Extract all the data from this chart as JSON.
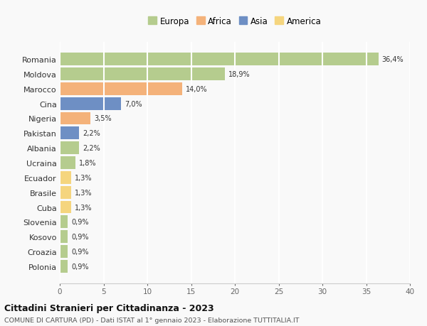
{
  "countries": [
    "Romania",
    "Moldova",
    "Marocco",
    "Cina",
    "Nigeria",
    "Pakistan",
    "Albania",
    "Ucraina",
    "Ecuador",
    "Brasile",
    "Cuba",
    "Slovenia",
    "Kosovo",
    "Croazia",
    "Polonia"
  ],
  "values": [
    36.4,
    18.9,
    14.0,
    7.0,
    3.5,
    2.2,
    2.2,
    1.8,
    1.3,
    1.3,
    1.3,
    0.9,
    0.9,
    0.9,
    0.9
  ],
  "labels": [
    "36,4%",
    "18,9%",
    "14,0%",
    "7,0%",
    "3,5%",
    "2,2%",
    "2,2%",
    "1,8%",
    "1,3%",
    "1,3%",
    "1,3%",
    "0,9%",
    "0,9%",
    "0,9%",
    "0,9%"
  ],
  "continents": [
    "Europa",
    "Europa",
    "Africa",
    "Asia",
    "Africa",
    "Asia",
    "Europa",
    "Europa",
    "America",
    "America",
    "America",
    "Europa",
    "Europa",
    "Europa",
    "Europa"
  ],
  "colors": {
    "Europa": "#b5cc8e",
    "Africa": "#f4b27a",
    "Asia": "#6e8fc4",
    "America": "#f5d57e"
  },
  "legend_colors": {
    "Europa": "#b5cc8e",
    "Africa": "#f4b27a",
    "Asia": "#6e8fc4",
    "America": "#f5d57e"
  },
  "title": "Cittadini Stranieri per Cittadinanza - 2023",
  "subtitle": "COMUNE DI CARTURA (PD) - Dati ISTAT al 1° gennaio 2023 - Elaborazione TUTTITALIA.IT",
  "xlim": [
    0,
    40
  ],
  "xticks": [
    0,
    5,
    10,
    15,
    20,
    25,
    30,
    35,
    40
  ],
  "background_color": "#f9f9f9",
  "grid_color": "#ffffff",
  "bar_height": 0.85
}
